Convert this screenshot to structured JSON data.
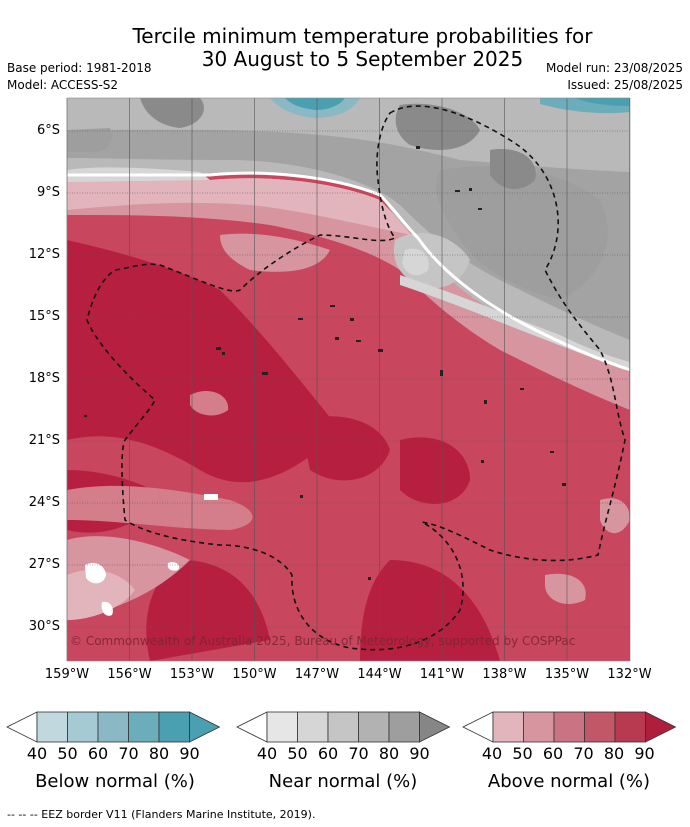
{
  "title": {
    "line1": "Tercile minimum temperature probabilities for",
    "line2": "30 August to 5 September 2025"
  },
  "meta": {
    "base_period": "Base period: 1981-2018",
    "model": "Model: ACCESS-S2",
    "model_run": "Model run: 23/08/2025",
    "issued": "Issued: 25/08/2025"
  },
  "map": {
    "lat_labels": [
      "6°S",
      "9°S",
      "12°S",
      "15°S",
      "18°S",
      "21°S",
      "24°S",
      "27°S",
      "30°S"
    ],
    "lon_labels": [
      "159°W",
      "156°W",
      "153°W",
      "150°W",
      "147°W",
      "144°W",
      "141°W",
      "138°W",
      "135°W",
      "132°W"
    ],
    "copyright": "© Commonwealth of Australia 2025, Bureau of Meteorology, supported by COSPPac"
  },
  "colorbars": [
    {
      "label": "Below normal (%)",
      "ticks": [
        "40",
        "50",
        "60",
        "70",
        "80",
        "90"
      ],
      "colors": [
        "#ffffff",
        "#c1d8df",
        "#a6cad3",
        "#8ab9c5",
        "#6badbb",
        "#4aa0b1"
      ]
    },
    {
      "label": "Near normal (%)",
      "ticks": [
        "40",
        "50",
        "60",
        "70",
        "80",
        "90"
      ],
      "colors": [
        "#ffffff",
        "#e6e6e6",
        "#d6d6d6",
        "#c5c5c5",
        "#b2b2b2",
        "#9e9e9e",
        "#868686"
      ]
    },
    {
      "label": "Above normal (%)",
      "ticks": [
        "40",
        "50",
        "60",
        "70",
        "80",
        "90"
      ],
      "colors": [
        "#ffffff",
        "#e2b5bd",
        "#d6959f",
        "#ca7483",
        "#c25768",
        "#b83a50",
        "#b01e3d"
      ]
    }
  ],
  "footer": "-- -- -- EEZ border V11 (Flanders Marine Institute, 2019)."
}
